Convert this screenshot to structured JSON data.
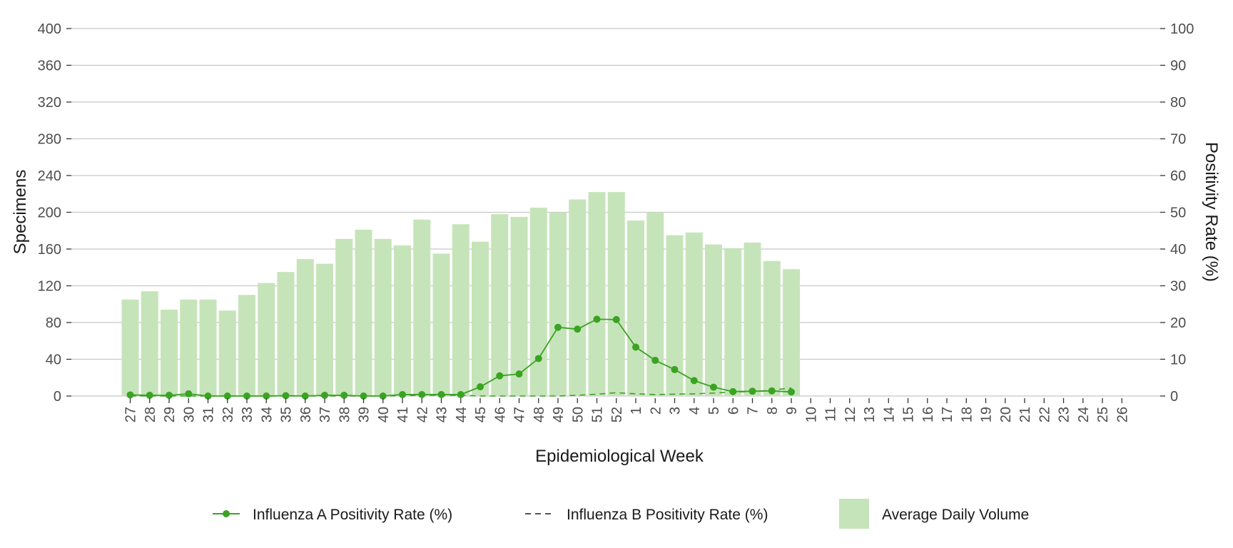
{
  "chart_data": {
    "type": "bar",
    "xlabel": "Epidemiological Week",
    "ylabel_left": "Specimens",
    "ylabel_right": "Positivity Rate (%)",
    "ylim_left": [
      0,
      400
    ],
    "ylim_right": [
      0,
      100
    ],
    "yticks_left": [
      0,
      40,
      80,
      120,
      160,
      200,
      240,
      280,
      320,
      360,
      400
    ],
    "yticks_right": [
      0,
      10,
      20,
      30,
      40,
      50,
      60,
      70,
      80,
      90,
      100
    ],
    "grid": "horizontal",
    "legend_position": "bottom",
    "categories": [
      "27",
      "28",
      "29",
      "30",
      "31",
      "32",
      "33",
      "34",
      "35",
      "36",
      "37",
      "38",
      "39",
      "40",
      "41",
      "42",
      "43",
      "44",
      "45",
      "46",
      "47",
      "48",
      "49",
      "50",
      "51",
      "52",
      "1",
      "2",
      "3",
      "4",
      "5",
      "6",
      "7",
      "8",
      "9",
      "10",
      "11",
      "12",
      "13",
      "14",
      "15",
      "16",
      "17",
      "18",
      "19",
      "20",
      "21",
      "22",
      "23",
      "24",
      "25",
      "26"
    ],
    "series": [
      {
        "name": "Average Daily Volume",
        "type": "bar",
        "axis": "left",
        "color": "#c6e4b9",
        "values": [
          105,
          114,
          94,
          105,
          105,
          93,
          110,
          123,
          135,
          149,
          144,
          171,
          181,
          171,
          164,
          192,
          155,
          187,
          168,
          198,
          195,
          205,
          200,
          214,
          222,
          222,
          191,
          200,
          175,
          178,
          165,
          161,
          167,
          147,
          138,
          null,
          null,
          null,
          null,
          null,
          null,
          null,
          null,
          null,
          null,
          null,
          null,
          null,
          null,
          null,
          null,
          null
        ]
      },
      {
        "name": "Influenza A Positivity Rate (%)",
        "type": "line",
        "axis": "right",
        "color": "#3aa323",
        "marker": "circle",
        "line_style": "solid",
        "values": [
          0.3,
          0.2,
          0.2,
          0.6,
          0.0,
          0.0,
          0.0,
          0.0,
          0.1,
          0.0,
          0.2,
          0.2,
          0.0,
          0.0,
          0.4,
          0.4,
          0.4,
          0.4,
          2.5,
          5.5,
          6.0,
          10.2,
          18.7,
          18.2,
          20.9,
          20.8,
          13.3,
          9.7,
          7.2,
          4.2,
          2.4,
          1.2,
          1.3,
          1.4,
          1.1,
          null,
          null,
          null,
          null,
          null,
          null,
          null,
          null,
          null,
          null,
          null,
          null,
          null,
          null,
          null,
          null,
          null
        ]
      },
      {
        "name": "Influenza B Positivity Rate (%)",
        "type": "line",
        "axis": "right",
        "color": "#3aa323",
        "line_style": "dashed",
        "values": [
          0.0,
          0.0,
          0.0,
          0.0,
          0.0,
          0.0,
          0.0,
          0.0,
          0.0,
          0.0,
          0.0,
          0.0,
          0.0,
          0.0,
          0.1,
          0.2,
          0.2,
          0.2,
          0.0,
          0.0,
          0.0,
          0.0,
          0.0,
          0.2,
          0.5,
          0.9,
          0.6,
          0.4,
          0.5,
          0.6,
          0.8,
          1.1,
          1.2,
          1.6,
          2.2,
          null,
          null,
          null,
          null,
          null,
          null,
          null,
          null,
          null,
          null,
          null,
          null,
          null,
          null,
          null,
          null,
          null
        ]
      }
    ]
  }
}
